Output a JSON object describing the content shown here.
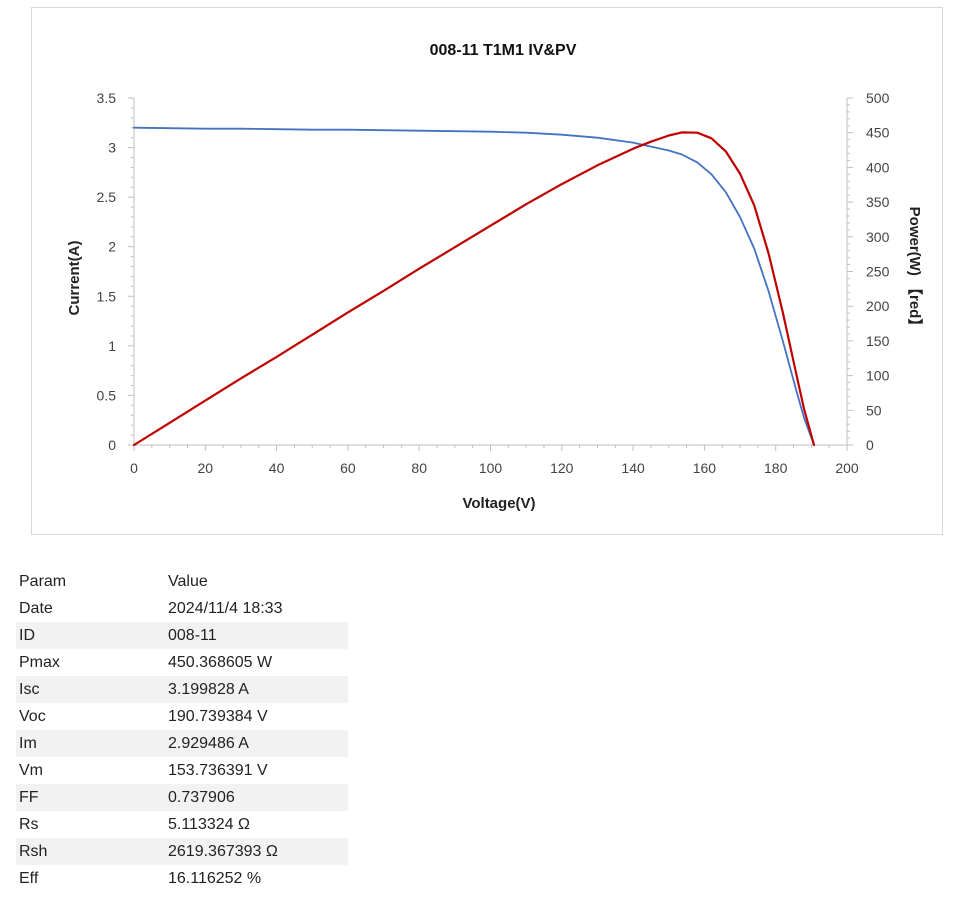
{
  "chart_data": {
    "type": "line",
    "title": "008-11 T1M1 IV&PV",
    "xlabel": "Voltage(V)",
    "ylabel": "Current(A)",
    "y2label": "Power(W) 【red】",
    "xlim": [
      0,
      200
    ],
    "ylim": [
      0,
      3.5
    ],
    "y2lim": [
      0,
      500
    ],
    "x_ticks": [
      0,
      20,
      40,
      60,
      80,
      100,
      120,
      140,
      160,
      180,
      200
    ],
    "y_ticks": [
      0,
      0.5,
      1,
      1.5,
      2,
      2.5,
      3,
      3.5
    ],
    "y2_ticks": [
      0,
      50,
      100,
      150,
      200,
      250,
      300,
      350,
      400,
      450,
      500
    ],
    "grid": false,
    "series": [
      {
        "color": "#4472C4",
        "axis": "left",
        "x": [
          0,
          10,
          20,
          30,
          40,
          50,
          60,
          70,
          80,
          90,
          100,
          110,
          120,
          130,
          140,
          145,
          150,
          153.7,
          158,
          162,
          166,
          170,
          174,
          178,
          182,
          186,
          188,
          190.74
        ],
        "y": [
          3.2,
          3.195,
          3.19,
          3.19,
          3.185,
          3.18,
          3.18,
          3.175,
          3.17,
          3.165,
          3.16,
          3.15,
          3.13,
          3.1,
          3.05,
          3.01,
          2.97,
          2.93,
          2.85,
          2.73,
          2.55,
          2.3,
          1.98,
          1.55,
          1.05,
          0.52,
          0.27,
          0
        ]
      },
      {
        "color": "#C00000",
        "axis": "right",
        "x": [
          0,
          10,
          20,
          30,
          40,
          50,
          60,
          70,
          80,
          90,
          100,
          110,
          120,
          130,
          140,
          145,
          150,
          153.7,
          158,
          162,
          166,
          170,
          174,
          178,
          182,
          186,
          188,
          190.74
        ],
        "y": [
          0,
          32,
          64,
          96,
          127,
          159,
          191,
          222,
          254,
          285,
          316,
          347,
          376,
          403,
          427,
          437,
          446,
          450.4,
          450,
          442,
          423,
          391,
          345,
          276,
          191,
          97,
          51,
          0
        ]
      }
    ]
  },
  "table": {
    "header": {
      "param": "Param",
      "value": "Value"
    },
    "rows": [
      {
        "param": "Date",
        "value": "2024/11/4 18:33"
      },
      {
        "param": "ID",
        "value": "008-11"
      },
      {
        "param": "Pmax",
        "value": "450.368605 W"
      },
      {
        "param": "Isc",
        "value": "3.199828 A"
      },
      {
        "param": "Voc",
        "value": "190.739384 V"
      },
      {
        "param": "Im",
        "value": "2.929486 A"
      },
      {
        "param": "Vm",
        "value": "153.736391 V"
      },
      {
        "param": "FF",
        "value": "0.737906"
      },
      {
        "param": "Rs",
        "value": "5.113324 Ω"
      },
      {
        "param": "Rsh",
        "value": "2619.367393 Ω"
      },
      {
        "param": "Eff",
        "value": "16.116252 %"
      }
    ]
  }
}
